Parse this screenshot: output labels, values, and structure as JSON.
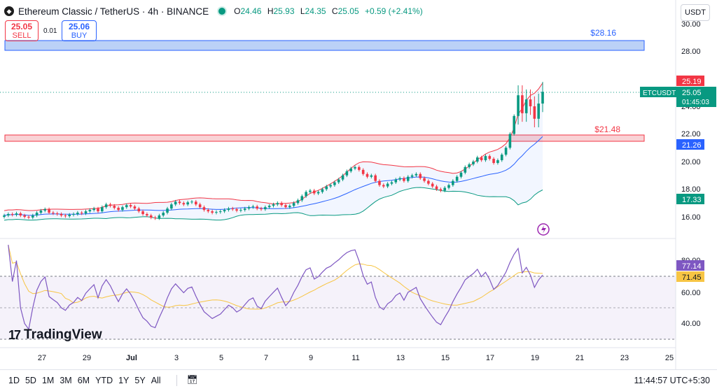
{
  "header": {
    "title": "Ethereum Classic / TetherUS · 4h · BINANCE",
    "ohlc": {
      "o": "24.46",
      "h": "25.93",
      "l": "24.35",
      "c": "25.05",
      "change": "+0.59 (+2.41%)"
    }
  },
  "trade": {
    "sell_price": "25.05",
    "sell_label": "SELL",
    "spread": "0.01",
    "buy_price": "25.06",
    "buy_label": "BUY"
  },
  "currency": "USDT",
  "colors": {
    "up": "#089981",
    "down": "#f23645",
    "accent": "#2962ff",
    "rsi": "#7e57c2",
    "rsi_ma": "#f7c544",
    "bb_upper": "#f23645",
    "bb_lower": "#089981",
    "bb_basis": "#2962ff"
  },
  "price_axis": {
    "ticks": [
      "30.00",
      "28.00",
      "26.00",
      "24.00",
      "22.00",
      "20.00",
      "18.00",
      "16.00"
    ],
    "labels": {
      "bb_upper": "25.19",
      "ticker": "ETCUSDT",
      "last": "25.05",
      "countdown": "01:45:03",
      "bb_basis": "21.26",
      "bb_lower": "17.33"
    }
  },
  "rsi_axis": {
    "ticks": [
      "80.00",
      "60.00",
      "40.00"
    ],
    "labels": {
      "rsi": "77.14",
      "rsi_ma": "71.45"
    }
  },
  "time_axis": [
    "27",
    "29",
    "Jul",
    "3",
    "5",
    "7",
    "9",
    "11",
    "13",
    "15",
    "17",
    "19",
    "21",
    "23",
    "25"
  ],
  "annotations": {
    "resistance": "$28.16",
    "support": "$21.48"
  },
  "branding": {
    "name": "TradingView"
  },
  "timeframes": [
    "1D",
    "5D",
    "1M",
    "3M",
    "6M",
    "YTD",
    "1Y",
    "5Y",
    "All"
  ],
  "clock": "11:44:57 UTC+5:30",
  "chart_data": {
    "type": "candlestick",
    "title": "Ethereum Classic / TetherUS · 4h · BINANCE",
    "ylim": [
      15,
      31
    ],
    "zones": [
      {
        "label": "$28.16",
        "low": 28.0,
        "high": 28.75,
        "color": "#2962ff"
      },
      {
        "label": "$21.48",
        "low": 21.48,
        "high": 21.95,
        "color": "#f23645"
      }
    ],
    "close_series": [
      16.1,
      16.2,
      16.15,
      16.25,
      16.1,
      16.0,
      15.95,
      16.1,
      16.3,
      16.45,
      16.55,
      16.3,
      16.25,
      16.2,
      16.1,
      16.05,
      16.15,
      16.2,
      16.3,
      16.25,
      16.4,
      16.5,
      16.6,
      16.4,
      16.7,
      16.9,
      16.8,
      16.65,
      16.5,
      16.7,
      16.85,
      16.75,
      16.6,
      16.4,
      16.2,
      16.1,
      15.95,
      15.9,
      16.1,
      16.3,
      16.6,
      16.9,
      17.1,
      17.0,
      16.9,
      17.05,
      17.1,
      16.9,
      16.7,
      16.5,
      16.4,
      16.3,
      16.35,
      16.4,
      16.5,
      16.6,
      16.55,
      16.45,
      16.5,
      16.6,
      16.7,
      16.75,
      16.6,
      16.55,
      16.7,
      16.8,
      16.9,
      17.0,
      16.85,
      16.7,
      16.8,
      17.0,
      17.2,
      17.5,
      17.8,
      17.9,
      17.7,
      17.8,
      18.0,
      18.2,
      18.3,
      18.5,
      18.7,
      19.0,
      19.3,
      19.5,
      19.6,
      19.4,
      19.1,
      18.9,
      19.0,
      18.6,
      18.3,
      18.2,
      18.4,
      18.5,
      18.7,
      18.8,
      18.6,
      18.9,
      19.0,
      19.1,
      18.8,
      18.6,
      18.4,
      18.2,
      18.0,
      17.9,
      18.1,
      18.3,
      18.6,
      18.9,
      19.2,
      19.6,
      19.8,
      20.0,
      20.3,
      20.1,
      20.4,
      20.2,
      19.9,
      20.1,
      20.5,
      21.0,
      22.0,
      23.3,
      24.8,
      23.5,
      24.5,
      24.0,
      23.1,
      24.2,
      25.05
    ],
    "rsi": {
      "last": 77.14,
      "ma_last": 71.45,
      "levels": [
        70,
        30
      ]
    }
  }
}
